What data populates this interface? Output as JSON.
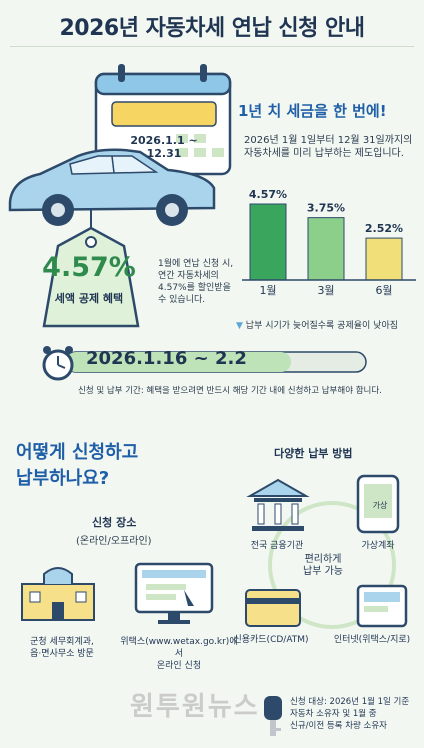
{
  "title": "2026년 자동차세 연납 신청 안내",
  "calendar_range": "2026.1.1 ~ 12.31",
  "headline": "1년 치 세금을 한 번에!",
  "description": "2026년 1월 1일부터 12월 31일까지의 자동차세를 미리 납부하는 제도입니다.",
  "tag": {
    "rate": "4.57%",
    "label": "세액 공제 혜택",
    "desc": "1월에 연납 신청 시, 연간 자동차세의 4.57%를 할인받을 수 있습니다."
  },
  "chart_data": {
    "type": "bar",
    "categories": [
      "1월",
      "3월",
      "6월"
    ],
    "values": [
      4.57,
      3.75,
      2.52
    ],
    "value_labels": [
      "4.57%",
      "3.75%",
      "2.52%"
    ],
    "colors": [
      "#3aa65d",
      "#8ccf8b",
      "#f1e07a"
    ],
    "note": "납부 시기가 늦어질수록 공제율이 낮아짐"
  },
  "period": {
    "text": "2026.1.16 ~ 2.2",
    "note": "신청 및 납부 기간: 혜택을 받으려면 반드시 해당 기간 내에 신청하고 납부해야 합니다.",
    "progress": 0.75
  },
  "how": {
    "line1": "어떻게 신청하고",
    "line2": "납부하나요?"
  },
  "places": {
    "title": "신청 장소",
    "subtitle": "(온라인/오프라인)",
    "offline_line1": "군청 세무회계과,",
    "offline_line2": "읍·면사무소 방문",
    "online_line1": "위택스(www.wetax.go.kr)에서",
    "online_line2": "온라인 신청"
  },
  "methods": {
    "title": "다양한 납부 방법",
    "bank": "전국 금융기관",
    "virtual": "가상계좌",
    "virtual_icon_text": "가상",
    "center_line1": "편리하게",
    "center_line2": "납부 가능",
    "card": "신용카드(CD/ATM)",
    "internet": "인터넷(위택스/지로)"
  },
  "footer": {
    "line1": "신청 대상: 2026년 1월 1일 기준",
    "line2": "자동차 소유자 및 1월 중",
    "line3": "신규/이전 등록 차량 소유자"
  },
  "watermark": "원투원뉴스"
}
